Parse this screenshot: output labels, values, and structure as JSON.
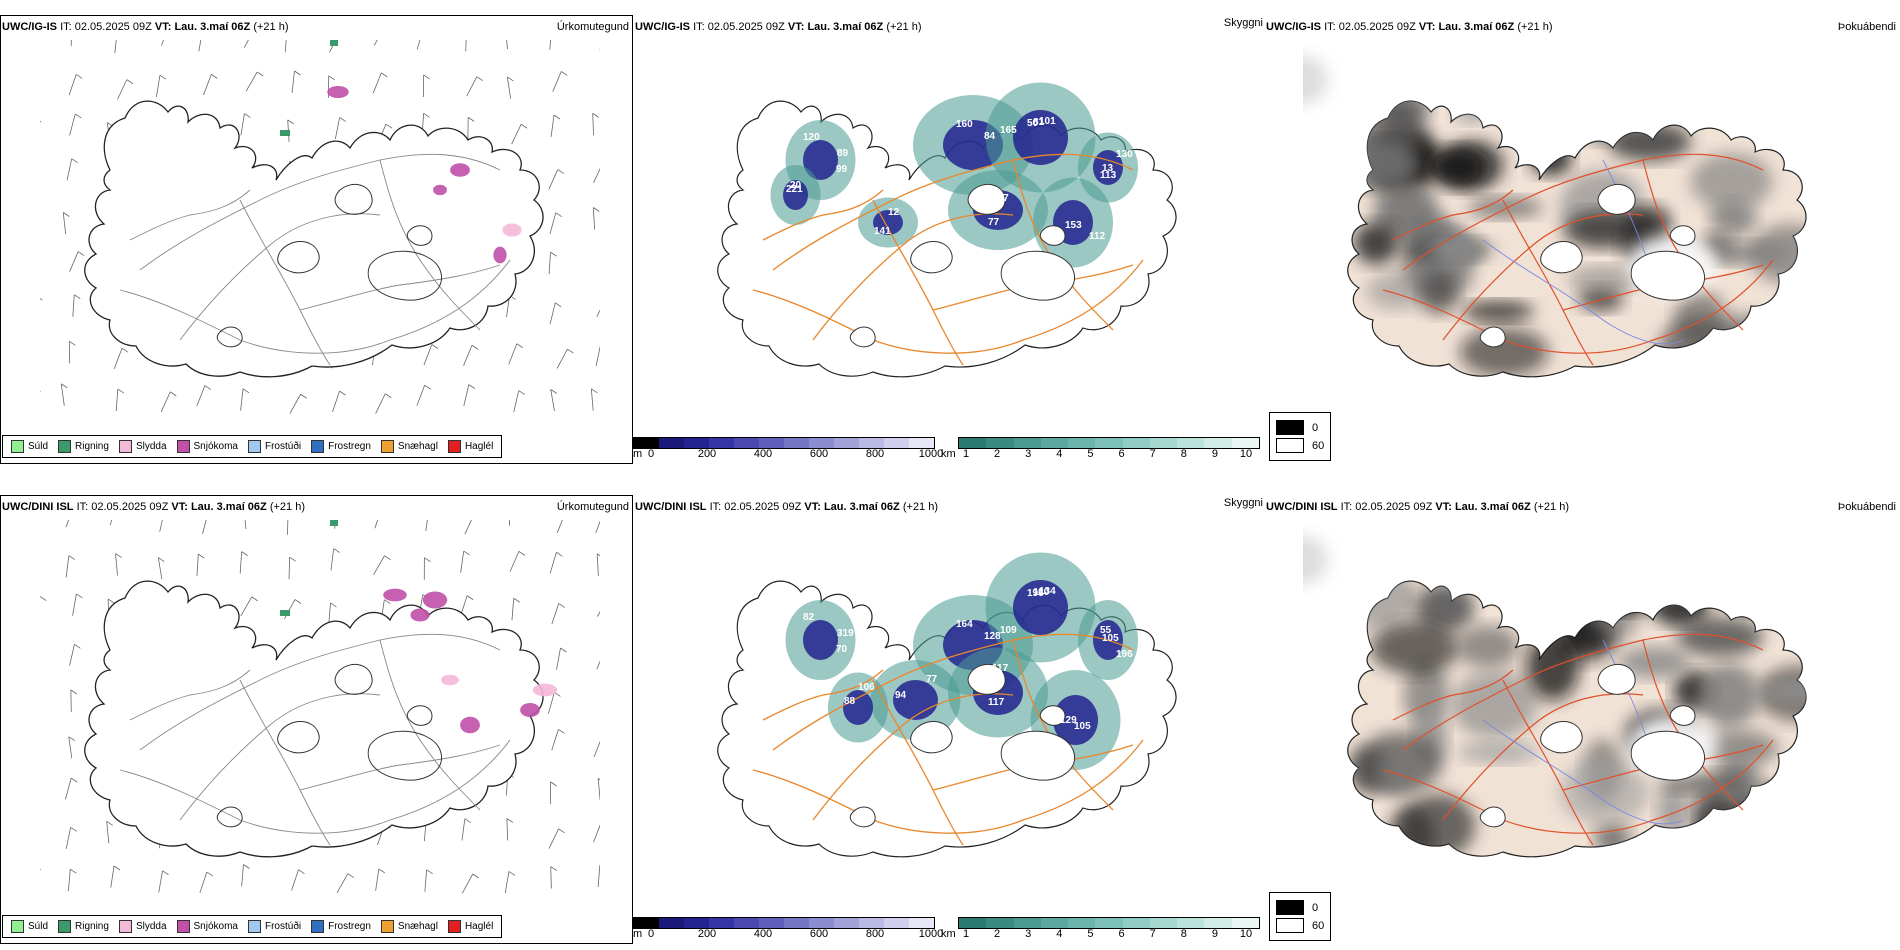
{
  "rows": [
    {
      "model": "UWC/IG-IS",
      "it_label": "IT:",
      "it_value": "02.05.2025 09Z",
      "vt_label": "VT:",
      "vt_value": "Lau. 3.maí 06Z",
      "lead": "(+21 h)",
      "ceiling_labels": [
        "120",
        "160",
        "101",
        "13",
        "153",
        "77",
        "221",
        "141",
        "89",
        "165",
        "81",
        "130",
        "112",
        "147",
        "20",
        "12",
        "99",
        "84",
        "50",
        "113"
      ],
      "snow_blobs": 5
    },
    {
      "model": "UWC/DINI ISL",
      "it_label": "IT:",
      "it_value": "02.05.2025 09Z",
      "vt_label": "VT:",
      "vt_value": "Lau. 3.maí 06Z",
      "lead": "(+21 h)",
      "ceiling_labels": [
        "82",
        "164",
        "134",
        "105",
        "129",
        "117",
        "77",
        "88",
        "319",
        "109",
        "110",
        "196",
        "105",
        "117",
        "94",
        "106",
        "70",
        "128",
        "196",
        "55"
      ],
      "snow_blobs": 7
    }
  ],
  "panel_types": {
    "precip": "Úrkomutegund",
    "ceiling": "Skyggni",
    "fog": "Þokuábendi"
  },
  "precip_legend": [
    {
      "label": "Súld",
      "color": "#90ee90"
    },
    {
      "label": "Rigning",
      "color": "#3a9a6a"
    },
    {
      "label": "Slydda",
      "color": "#f4b8d8"
    },
    {
      "label": "Snjókoma",
      "color": "#c050a8"
    },
    {
      "label": "Frostúði",
      "color": "#a0c8f0"
    },
    {
      "label": "Frostregn",
      "color": "#3070c0"
    },
    {
      "label": "Snæhagl",
      "color": "#f0a030"
    },
    {
      "label": "Haglél",
      "color": "#e02020"
    }
  ],
  "ceiling_colorbar": {
    "unit": "m",
    "ticks": [
      "0",
      "200",
      "400",
      "600",
      "800",
      "1000"
    ],
    "colors": [
      "#000000",
      "#1a1a7a",
      "#23238f",
      "#3535a5",
      "#4a4ab0",
      "#5f5fbc",
      "#7575c6",
      "#8c8cd0",
      "#a3a3da",
      "#babae4",
      "#d0d0ee",
      "#e6e6f6"
    ]
  },
  "visibility_colorbar": {
    "unit": "km",
    "ticks": [
      "1",
      "2",
      "3",
      "4",
      "5",
      "6",
      "7",
      "8",
      "9",
      "10"
    ],
    "colors": [
      "#2a7a72",
      "#3a8a82",
      "#4a9a92",
      "#5aa8a0",
      "#6ab4ac",
      "#7cc0b8",
      "#90ccc4",
      "#a6d8d0",
      "#bce2dc",
      "#d2ece8",
      "#eaf6f4"
    ]
  },
  "fog_legend": [
    {
      "label": "0",
      "color": "#000000"
    },
    {
      "label": "60",
      "color": "#ffffff"
    }
  ]
}
